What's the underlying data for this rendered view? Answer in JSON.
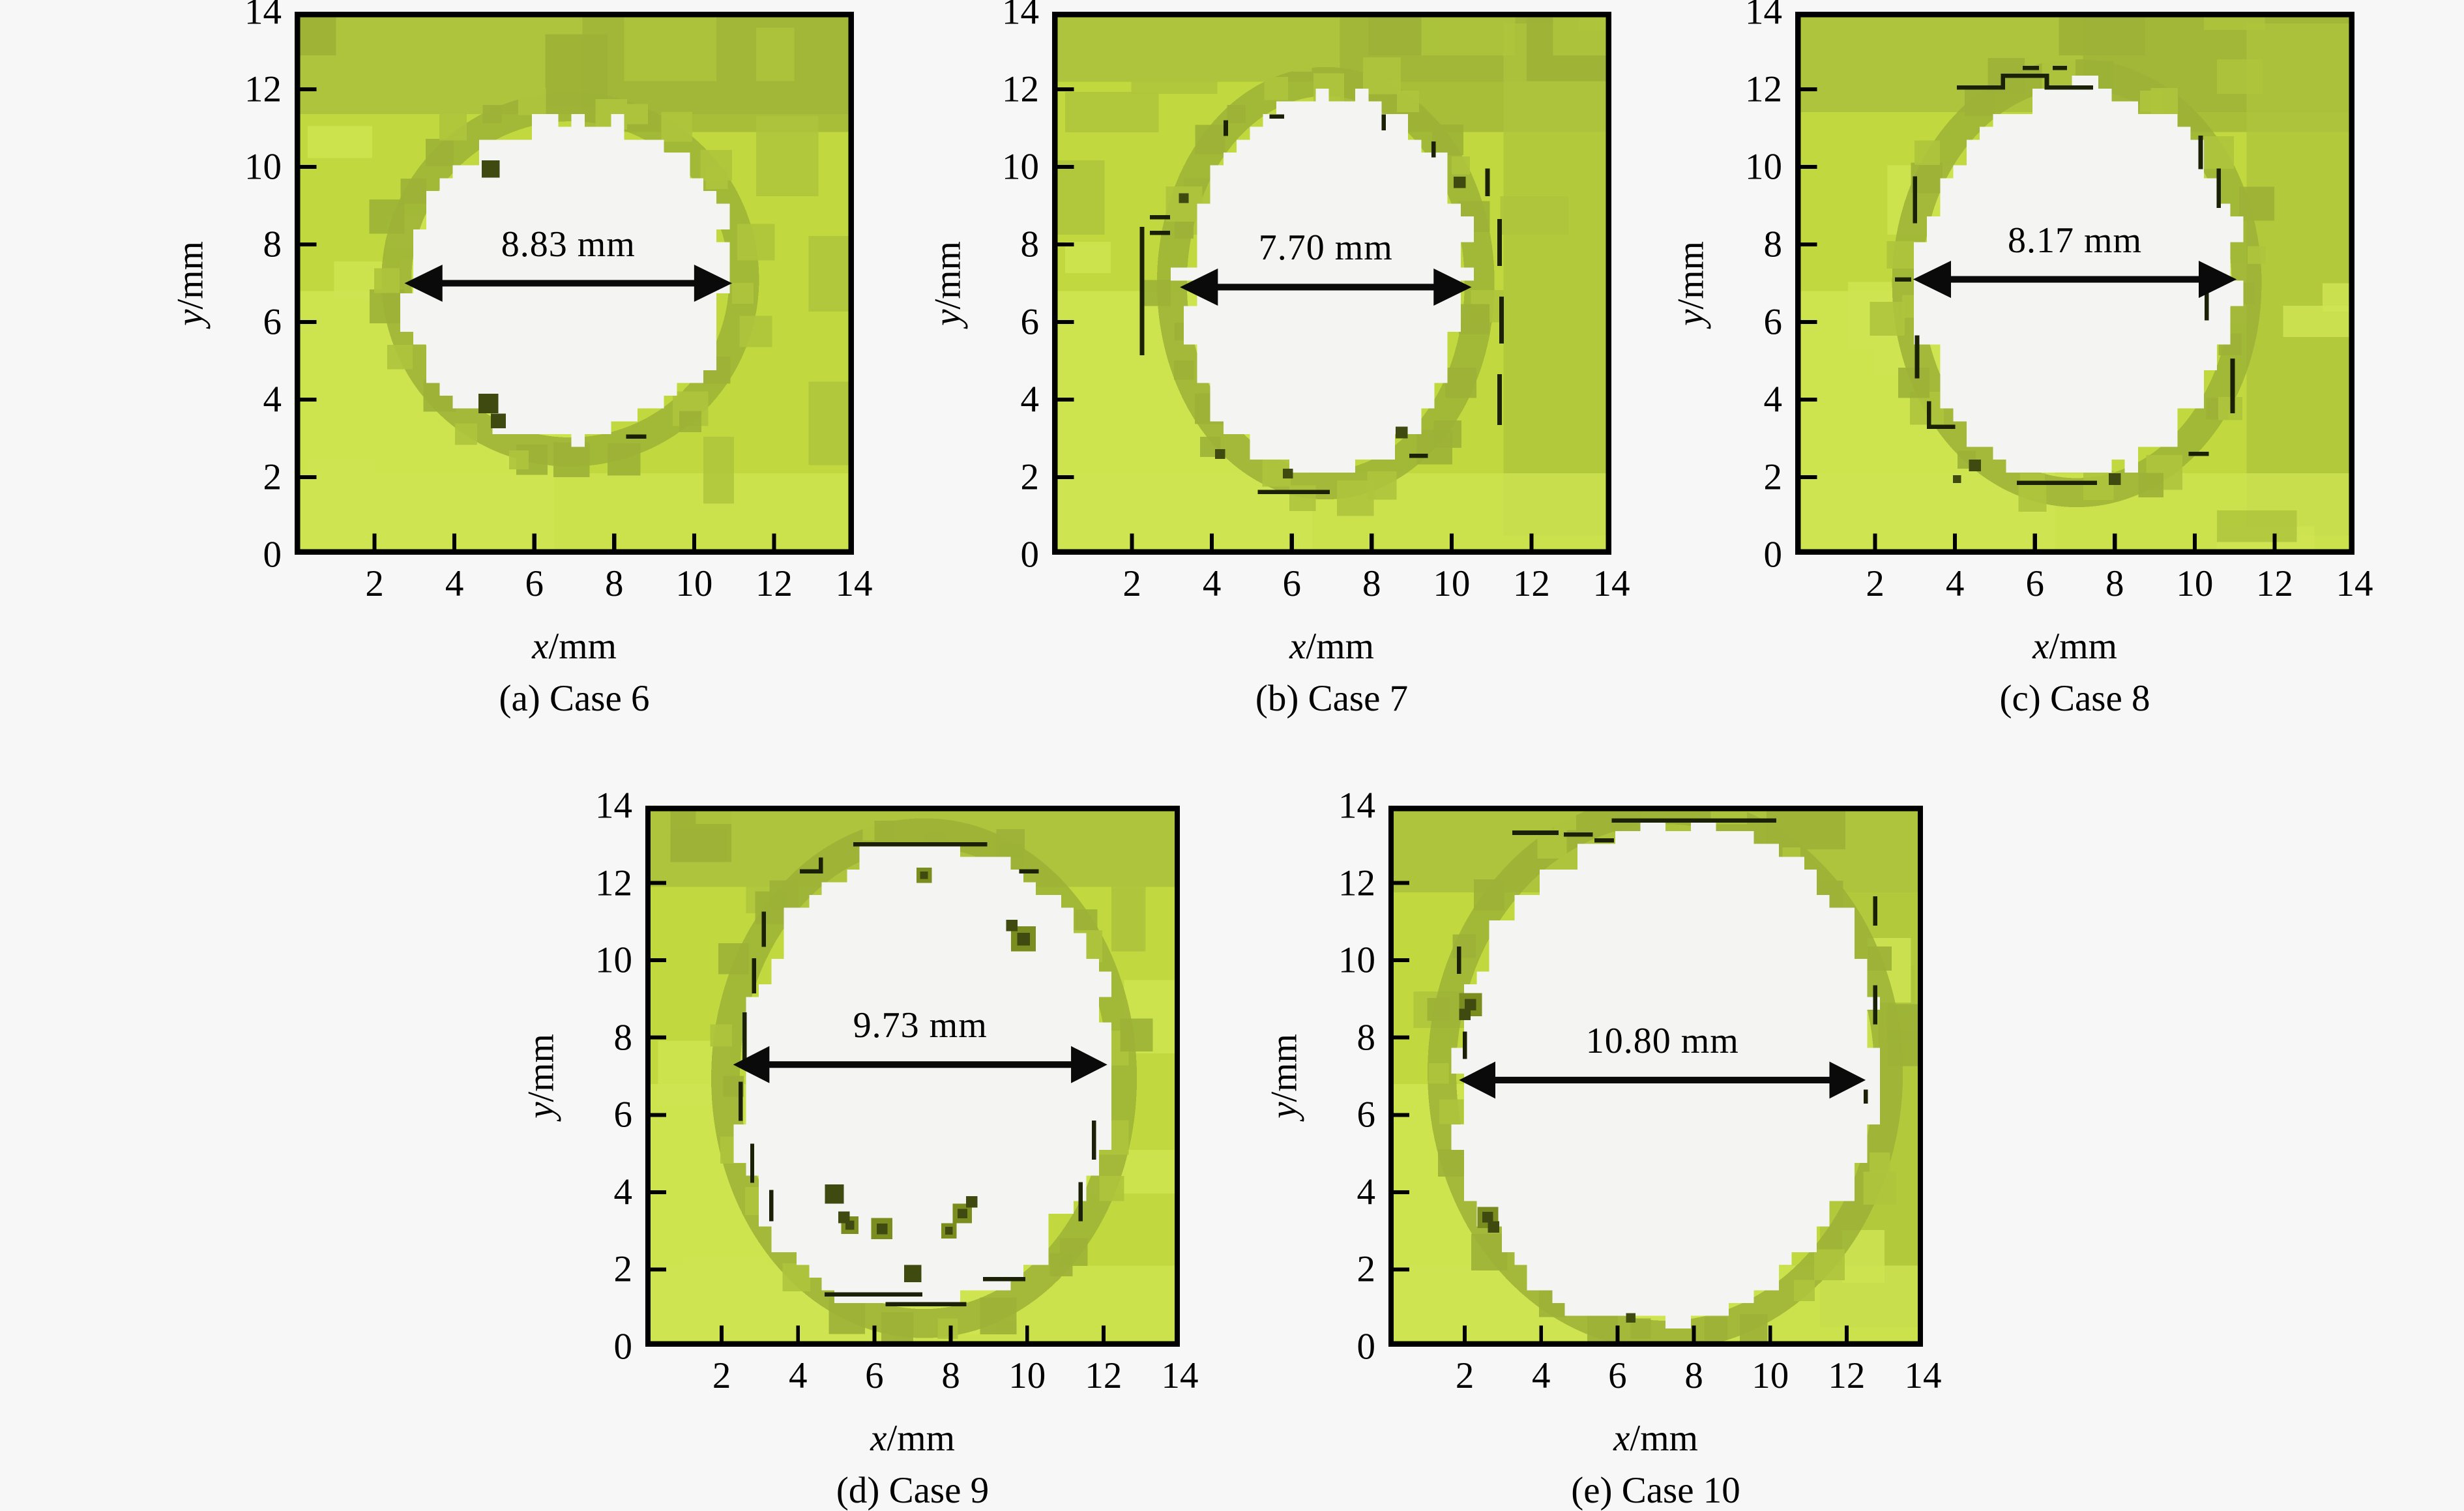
{
  "figure": {
    "axes": {
      "x_var": "x",
      "x_unit": "/mm",
      "y_var": "y",
      "y_unit": "/mm",
      "x_ticks": [
        2,
        4,
        6,
        8,
        10,
        12,
        14
      ],
      "y_ticks": [
        0,
        2,
        4,
        6,
        8,
        10,
        12,
        14
      ],
      "x_range": [
        0,
        14
      ],
      "y_range": [
        0,
        14
      ]
    },
    "colors": {
      "page_bg": "#f7f7f7",
      "map_base": "#c1d93e",
      "map_light": "#cfe451",
      "map_mid": "#aec43c",
      "map_dark": "#9cb136",
      "edge_line": "#1b2106",
      "speck_dark": "#3f4a10",
      "speck_olive": "#7b8d1f",
      "hole_fill": "#f4f4f2",
      "axis": "#000000",
      "arrow": "#0a0a0a"
    }
  },
  "chart_data": [
    {
      "type": "heatmap",
      "case": "Case 6",
      "caption": "(a) Case 6",
      "x_range": [
        0,
        14
      ],
      "y_range": [
        0,
        14
      ],
      "measurement": {
        "value": 8.83,
        "unit": "mm",
        "label": "8.83 mm"
      },
      "arrow": {
        "y": 7.0,
        "x1": 2.75,
        "x2": 10.95
      },
      "hole": {
        "cx": 6.9,
        "cy": 7.1,
        "rx": 4.05,
        "ry": 4.15
      },
      "edge_marks": [
        [
          8.35,
          3.05,
          8.75,
          3.05
        ]
      ],
      "specks": [
        {
          "x": 4.9,
          "y": 9.95,
          "s": 0.45,
          "c": "dark"
        },
        {
          "x": 4.85,
          "y": 3.9,
          "s": 0.5,
          "c": "dark"
        },
        {
          "x": 5.1,
          "y": 3.45,
          "s": 0.38,
          "c": "dark"
        }
      ]
    },
    {
      "type": "heatmap",
      "case": "Case 7",
      "caption": "(b) Case 7",
      "x_range": [
        0,
        14
      ],
      "y_range": [
        0,
        14
      ],
      "measurement": {
        "value": 7.7,
        "unit": "mm",
        "label": "7.70 mm"
      },
      "arrow": {
        "y": 6.9,
        "x1": 3.2,
        "x2": 10.5
      },
      "hole": {
        "cx": 6.85,
        "cy": 7.0,
        "rx": 3.55,
        "ry": 4.9
      },
      "edge_marks": [
        [
          2.25,
          5.2,
          2.25,
          8.4
        ],
        [
          2.5,
          8.7,
          2.9,
          8.7
        ],
        [
          2.5,
          8.3,
          2.9,
          8.3
        ],
        [
          5.2,
          1.62,
          6.9,
          1.62
        ],
        [
          11.2,
          3.4,
          11.2,
          4.6
        ],
        [
          11.25,
          5.5,
          11.25,
          6.6
        ],
        [
          11.2,
          7.5,
          11.2,
          8.6
        ],
        [
          10.9,
          9.3,
          10.9,
          9.9
        ],
        [
          9.0,
          2.55,
          9.35,
          2.55
        ],
        [
          4.35,
          10.85,
          4.35,
          11.15
        ],
        [
          5.5,
          11.3,
          5.75,
          11.3
        ],
        [
          8.3,
          11.0,
          8.3,
          11.3
        ],
        [
          9.55,
          10.3,
          9.55,
          10.6
        ]
      ],
      "specks": [
        {
          "x": 4.2,
          "y": 2.6,
          "s": 0.25,
          "c": "dark"
        },
        {
          "x": 5.9,
          "y": 2.1,
          "s": 0.25,
          "c": "dark"
        },
        {
          "x": 8.75,
          "y": 3.15,
          "s": 0.3,
          "c": "dark"
        },
        {
          "x": 3.3,
          "y": 9.2,
          "s": 0.25,
          "c": "dark"
        },
        {
          "x": 10.2,
          "y": 9.6,
          "s": 0.3,
          "c": "dark"
        }
      ]
    },
    {
      "type": "heatmap",
      "case": "Case 8",
      "caption": "(c) Case 8",
      "x_range": [
        0,
        14
      ],
      "y_range": [
        0,
        14
      ],
      "measurement": {
        "value": 8.17,
        "unit": "mm",
        "label": "8.17 mm"
      },
      "arrow": {
        "y": 7.1,
        "x1": 2.95,
        "x2": 11.05
      },
      "hole": {
        "cx": 7.05,
        "cy": 7.0,
        "rx": 3.95,
        "ry": 5.1
      },
      "edge_marks": [
        [
          4.1,
          12.05,
          5.2,
          12.05
        ],
        [
          5.2,
          12.05,
          5.2,
          12.35
        ],
        [
          5.2,
          12.35,
          6.3,
          12.35
        ],
        [
          6.3,
          12.35,
          6.3,
          12.05
        ],
        [
          6.3,
          12.05,
          7.4,
          12.05
        ],
        [
          3.05,
          4.6,
          3.05,
          5.6
        ],
        [
          3.0,
          8.6,
          3.0,
          9.7
        ],
        [
          3.35,
          3.3,
          3.95,
          3.3
        ],
        [
          3.35,
          3.3,
          3.35,
          3.9
        ],
        [
          5.6,
          1.85,
          7.5,
          1.85
        ],
        [
          10.95,
          3.7,
          10.95,
          5.0
        ],
        [
          10.6,
          9.0,
          10.6,
          9.9
        ],
        [
          10.15,
          10.0,
          10.15,
          10.75
        ],
        [
          10.3,
          6.1,
          10.3,
          6.9
        ],
        [
          9.9,
          2.6,
          10.3,
          2.6
        ],
        [
          5.75,
          12.55,
          6.05,
          12.55
        ],
        [
          6.5,
          12.55,
          6.75,
          12.55
        ],
        [
          2.55,
          7.1,
          2.85,
          7.1
        ]
      ],
      "specks": [
        {
          "x": 4.5,
          "y": 2.3,
          "s": 0.3,
          "c": "dark"
        },
        {
          "x": 4.05,
          "y": 1.95,
          "s": 0.2,
          "c": "dark"
        },
        {
          "x": 8.0,
          "y": 1.95,
          "s": 0.3,
          "c": "dark"
        }
      ]
    },
    {
      "type": "heatmap",
      "case": "Case 9",
      "caption": "(d) Case 9",
      "x_range": [
        0,
        14
      ],
      "y_range": [
        0,
        14
      ],
      "measurement": {
        "value": 9.73,
        "unit": "mm",
        "label": "9.73 mm"
      },
      "arrow": {
        "y": 7.3,
        "x1": 2.3,
        "x2": 12.1
      },
      "hole": {
        "cx": 7.3,
        "cy": 6.95,
        "rx": 4.9,
        "ry": 6.05
      },
      "edge_marks": [
        [
          5.5,
          13.0,
          8.9,
          13.0
        ],
        [
          4.1,
          12.3,
          4.6,
          12.3
        ],
        [
          4.6,
          12.3,
          4.6,
          12.6
        ],
        [
          3.1,
          10.4,
          3.1,
          11.2
        ],
        [
          2.85,
          9.2,
          2.85,
          10.0
        ],
        [
          2.6,
          7.3,
          2.6,
          8.6
        ],
        [
          2.5,
          5.9,
          2.5,
          6.8
        ],
        [
          2.8,
          4.3,
          2.8,
          5.2
        ],
        [
          3.3,
          3.3,
          3.3,
          4.0
        ],
        [
          4.75,
          1.35,
          7.2,
          1.35
        ],
        [
          6.35,
          1.1,
          8.35,
          1.1
        ],
        [
          8.9,
          1.75,
          9.9,
          1.75
        ],
        [
          11.4,
          3.3,
          11.4,
          4.2
        ],
        [
          11.75,
          4.9,
          11.75,
          5.8
        ],
        [
          9.85,
          12.3,
          10.25,
          12.3
        ]
      ],
      "specks": [
        {
          "x": 9.9,
          "y": 10.55,
          "s": 0.65,
          "c": "olive"
        },
        {
          "x": 9.6,
          "y": 10.9,
          "s": 0.3,
          "c": "dark"
        },
        {
          "x": 7.3,
          "y": 12.2,
          "s": 0.4,
          "c": "olive"
        },
        {
          "x": 4.95,
          "y": 3.95,
          "s": 0.5,
          "c": "dark"
        },
        {
          "x": 5.35,
          "y": 3.15,
          "s": 0.45,
          "c": "olive"
        },
        {
          "x": 5.2,
          "y": 3.35,
          "s": 0.3,
          "c": "dark"
        },
        {
          "x": 6.2,
          "y": 3.05,
          "s": 0.55,
          "c": "olive"
        },
        {
          "x": 8.3,
          "y": 3.45,
          "s": 0.5,
          "c": "olive"
        },
        {
          "x": 7.95,
          "y": 3.0,
          "s": 0.4,
          "c": "olive"
        },
        {
          "x": 8.55,
          "y": 3.75,
          "s": 0.3,
          "c": "dark"
        },
        {
          "x": 7.0,
          "y": 1.9,
          "s": 0.45,
          "c": "dark"
        }
      ]
    },
    {
      "type": "heatmap",
      "case": "Case 10",
      "caption": "(e) Case 10",
      "x_range": [
        0,
        14
      ],
      "y_range": [
        0,
        14
      ],
      "measurement": {
        "value": 10.8,
        "unit": "mm",
        "label": "10.80 mm"
      },
      "arrow": {
        "y": 6.9,
        "x1": 1.85,
        "x2": 12.5
      },
      "hole": {
        "cx": 7.25,
        "cy": 7.1,
        "rx": 5.55,
        "ry": 6.5
      },
      "edge_marks": [
        [
          5.9,
          13.62,
          10.1,
          13.62
        ],
        [
          3.3,
          13.3,
          4.4,
          13.3
        ],
        [
          4.65,
          13.25,
          5.3,
          13.25
        ],
        [
          5.45,
          13.1,
          5.85,
          13.1
        ],
        [
          12.75,
          8.4,
          12.75,
          9.3
        ],
        [
          12.75,
          10.95,
          12.75,
          11.6
        ],
        [
          12.5,
          6.35,
          12.5,
          6.6
        ],
        [
          1.85,
          9.7,
          1.85,
          10.3
        ],
        [
          2.0,
          7.5,
          2.0,
          8.1
        ]
      ],
      "specks": [
        {
          "x": 2.15,
          "y": 8.85,
          "s": 0.6,
          "c": "olive"
        },
        {
          "x": 2.0,
          "y": 8.6,
          "s": 0.3,
          "c": "dark"
        },
        {
          "x": 2.6,
          "y": 3.35,
          "s": 0.55,
          "c": "olive"
        },
        {
          "x": 2.75,
          "y": 3.1,
          "s": 0.3,
          "c": "dark"
        },
        {
          "x": 6.35,
          "y": 0.75,
          "s": 0.25,
          "c": "dark"
        }
      ]
    }
  ]
}
